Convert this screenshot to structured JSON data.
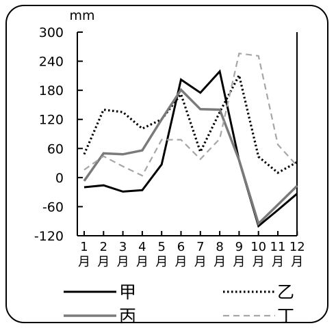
{
  "chart_data": {
    "type": "line",
    "unit": "mm",
    "ylim": [
      -120,
      300
    ],
    "yticks": [
      300,
      240,
      180,
      120,
      60,
      0,
      -60,
      -120
    ],
    "x": [
      "1",
      "2",
      "3",
      "4",
      "5",
      "6",
      "7",
      "8",
      "9",
      "10",
      "11",
      "12"
    ],
    "month_suffix": "月",
    "grid": false,
    "legend_position": "bottom",
    "series": [
      {
        "name": "甲",
        "style": "solid-black",
        "values": [
          -20,
          -16,
          -29,
          -26,
          27,
          202,
          175,
          219,
          35,
          -100,
          -67,
          -33
        ]
      },
      {
        "name": "乙",
        "style": "dotted-black",
        "values": [
          48,
          140,
          135,
          101,
          120,
          172,
          53,
          135,
          211,
          43,
          10,
          32
        ]
      },
      {
        "name": "丙",
        "style": "solid-gray",
        "values": [
          -7,
          50,
          48,
          56,
          120,
          181,
          141,
          140,
          36,
          -95,
          -56,
          -17
        ]
      },
      {
        "name": "丁",
        "style": "dashed-gray",
        "values": [
          16,
          44,
          23,
          4,
          78,
          78,
          38,
          80,
          256,
          251,
          68,
          24
        ]
      }
    ]
  },
  "colors": {
    "black": "#000000",
    "gray": "#7a7a7a",
    "light_gray": "#a6a6a6"
  }
}
